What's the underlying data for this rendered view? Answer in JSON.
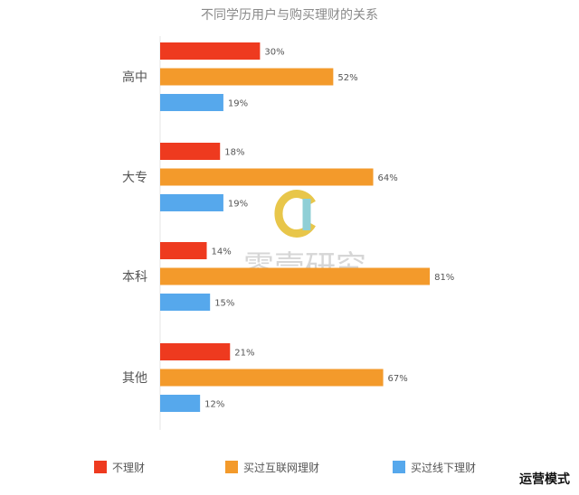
{
  "chart_data": {
    "type": "bar",
    "orientation": "horizontal",
    "title": "不同学历用户与购买理财的关系",
    "categories": [
      "高中",
      "大专",
      "本科",
      "其他"
    ],
    "series": [
      {
        "name": "不理财",
        "color": "#ee3a1f",
        "values": [
          30,
          18,
          14,
          21
        ]
      },
      {
        "name": "买过互联网理财",
        "color": "#f39a2b",
        "values": [
          52,
          64,
          81,
          67
        ]
      },
      {
        "name": "买过线下理财",
        "color": "#56a8ec",
        "values": [
          19,
          19,
          15,
          12
        ]
      }
    ],
    "value_suffix": "%",
    "xlim": [
      0,
      100
    ],
    "legend_position": "bottom",
    "grid": false
  },
  "watermark": {
    "text": "零壹研究",
    "logo_color": "#e8c64a",
    "logo_color2": "#8fcfd6"
  },
  "corner_label": "运营模式"
}
